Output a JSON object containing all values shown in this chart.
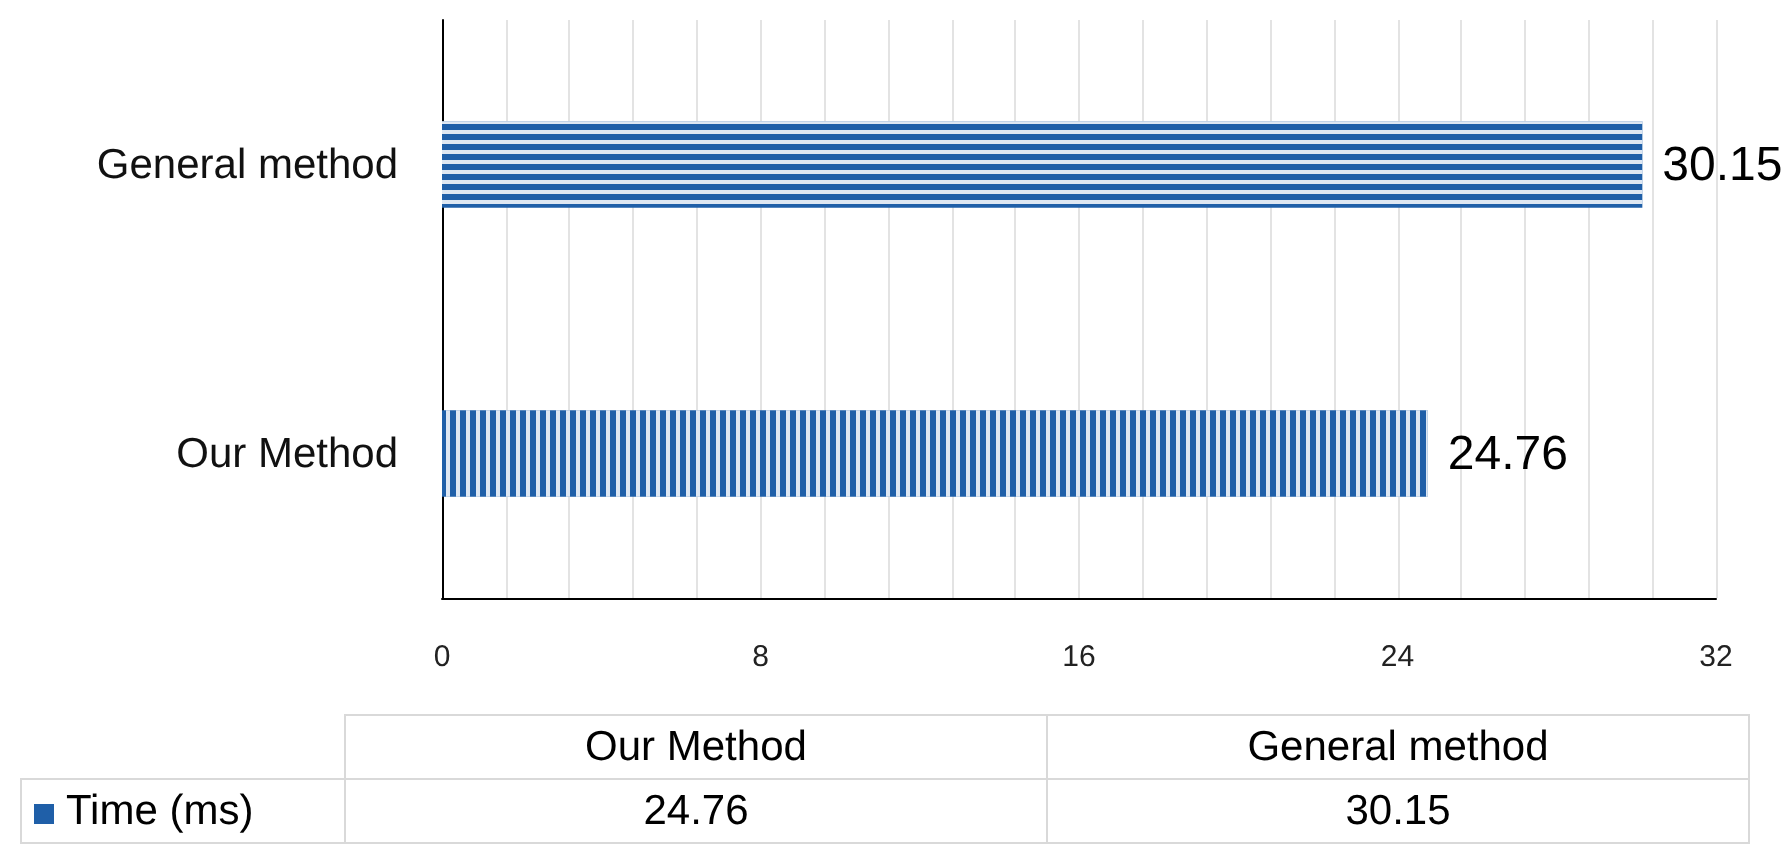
{
  "chart_data": {
    "type": "bar",
    "orientation": "horizontal",
    "categories": [
      "General method",
      "Our Method"
    ],
    "series": [
      {
        "name": "Time (ms)",
        "color": "#1f5fa8",
        "values": [
          30.15,
          24.76
        ],
        "value_labels": [
          "30.15",
          "24.76"
        ]
      }
    ],
    "xlim": [
      0,
      32
    ],
    "xticks": [
      0,
      {
        "value": 1.6,
        "label": null
      },
      {
        "value": 3.2,
        "label": null
      },
      {
        "value": 4.8,
        "label": null
      },
      {
        "value": 6.4,
        "label": null
      },
      8,
      {
        "value": 9.6,
        "label": null
      },
      {
        "value": 11.2,
        "label": null
      },
      {
        "value": 12.8,
        "label": null
      },
      {
        "value": 14.4,
        "label": null
      },
      16,
      {
        "value": 17.6,
        "label": null
      },
      {
        "value": 19.2,
        "label": null
      },
      {
        "value": 20.8,
        "label": null
      },
      {
        "value": 22.4,
        "label": null
      },
      24,
      {
        "value": 25.6,
        "label": null
      },
      {
        "value": 27.2,
        "label": null
      },
      {
        "value": 28.8,
        "label": null
      },
      {
        "value": 30.4,
        "label": null
      },
      32
    ],
    "annotations": [
      "24.76",
      "30.15"
    ],
    "grid": "x",
    "legend": "bottom"
  }
}
